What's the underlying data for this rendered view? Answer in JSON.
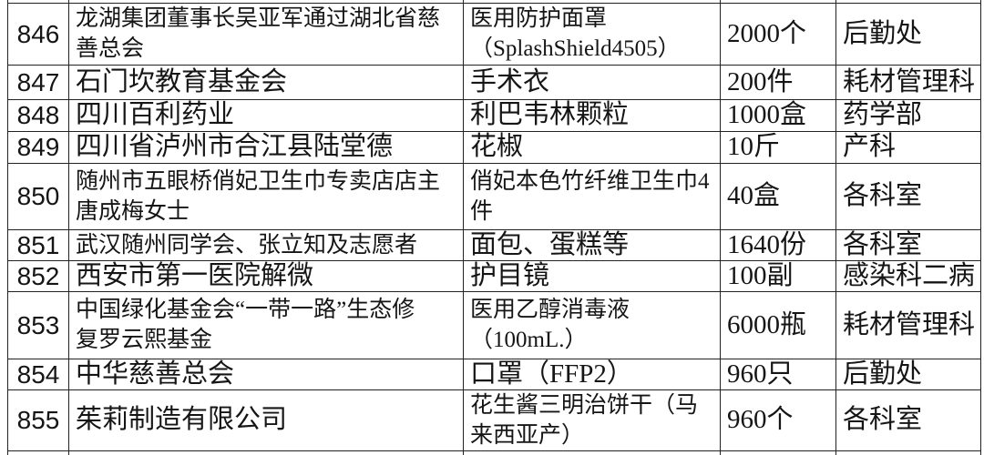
{
  "colors": {
    "background": "#ffffff",
    "border": "#222222",
    "text": "#151515"
  },
  "table": {
    "description_visible_rows": "846-855",
    "rows": [
      {
        "no": "846",
        "donor": "龙湖集团董事长吴亚军通过湖北省慈\n善总会",
        "item": "医用防护面罩\n（SplashShield4505）",
        "qty": "2000个",
        "dept": "后勤处"
      },
      {
        "no": "847",
        "donor": "石门坎教育基金会",
        "item": "手术衣",
        "qty": "200件",
        "dept": "耗材管理科"
      },
      {
        "no": "848",
        "donor": "四川百利药业",
        "item": "利巴韦林颗粒",
        "qty": "1000盒",
        "dept": "药学部"
      },
      {
        "no": "849",
        "donor": "四川省泸州市合江县陆堂德",
        "item": "花椒",
        "qty": "10斤",
        "dept": "产科"
      },
      {
        "no": "850",
        "donor": "随州市五眼桥俏妃卫生巾专卖店店主\n唐成梅女士",
        "item": "俏妃本色竹纤维卫生巾4\n件",
        "qty": "40盒",
        "dept": "各科室"
      },
      {
        "no": "851",
        "donor": "武汉随州同学会、张立知及志愿者",
        "item": "面包、蛋糕等",
        "qty": "1640份",
        "dept": "各科室"
      },
      {
        "no": "852",
        "donor": "西安市第一医院解微",
        "item": "护目镜",
        "qty": "100副",
        "dept": "感染科二病"
      },
      {
        "no": "853",
        "donor": "中国绿化基金会“一带一路”生态修\n复罗云熙基金",
        "item": "医用乙醇消毒液\n（100mL.）",
        "qty": "6000瓶",
        "dept": "耗材管理科"
      },
      {
        "no": "854",
        "donor": "中华慈善总会",
        "item": "口罩（FFP2）",
        "qty": "960只",
        "dept": "后勤处"
      },
      {
        "no": "855",
        "donor": "茱莉制造有限公司",
        "item": "花生酱三明治饼干（马\n来西亚产）",
        "qty": "960个",
        "dept": "各科室"
      }
    ]
  }
}
